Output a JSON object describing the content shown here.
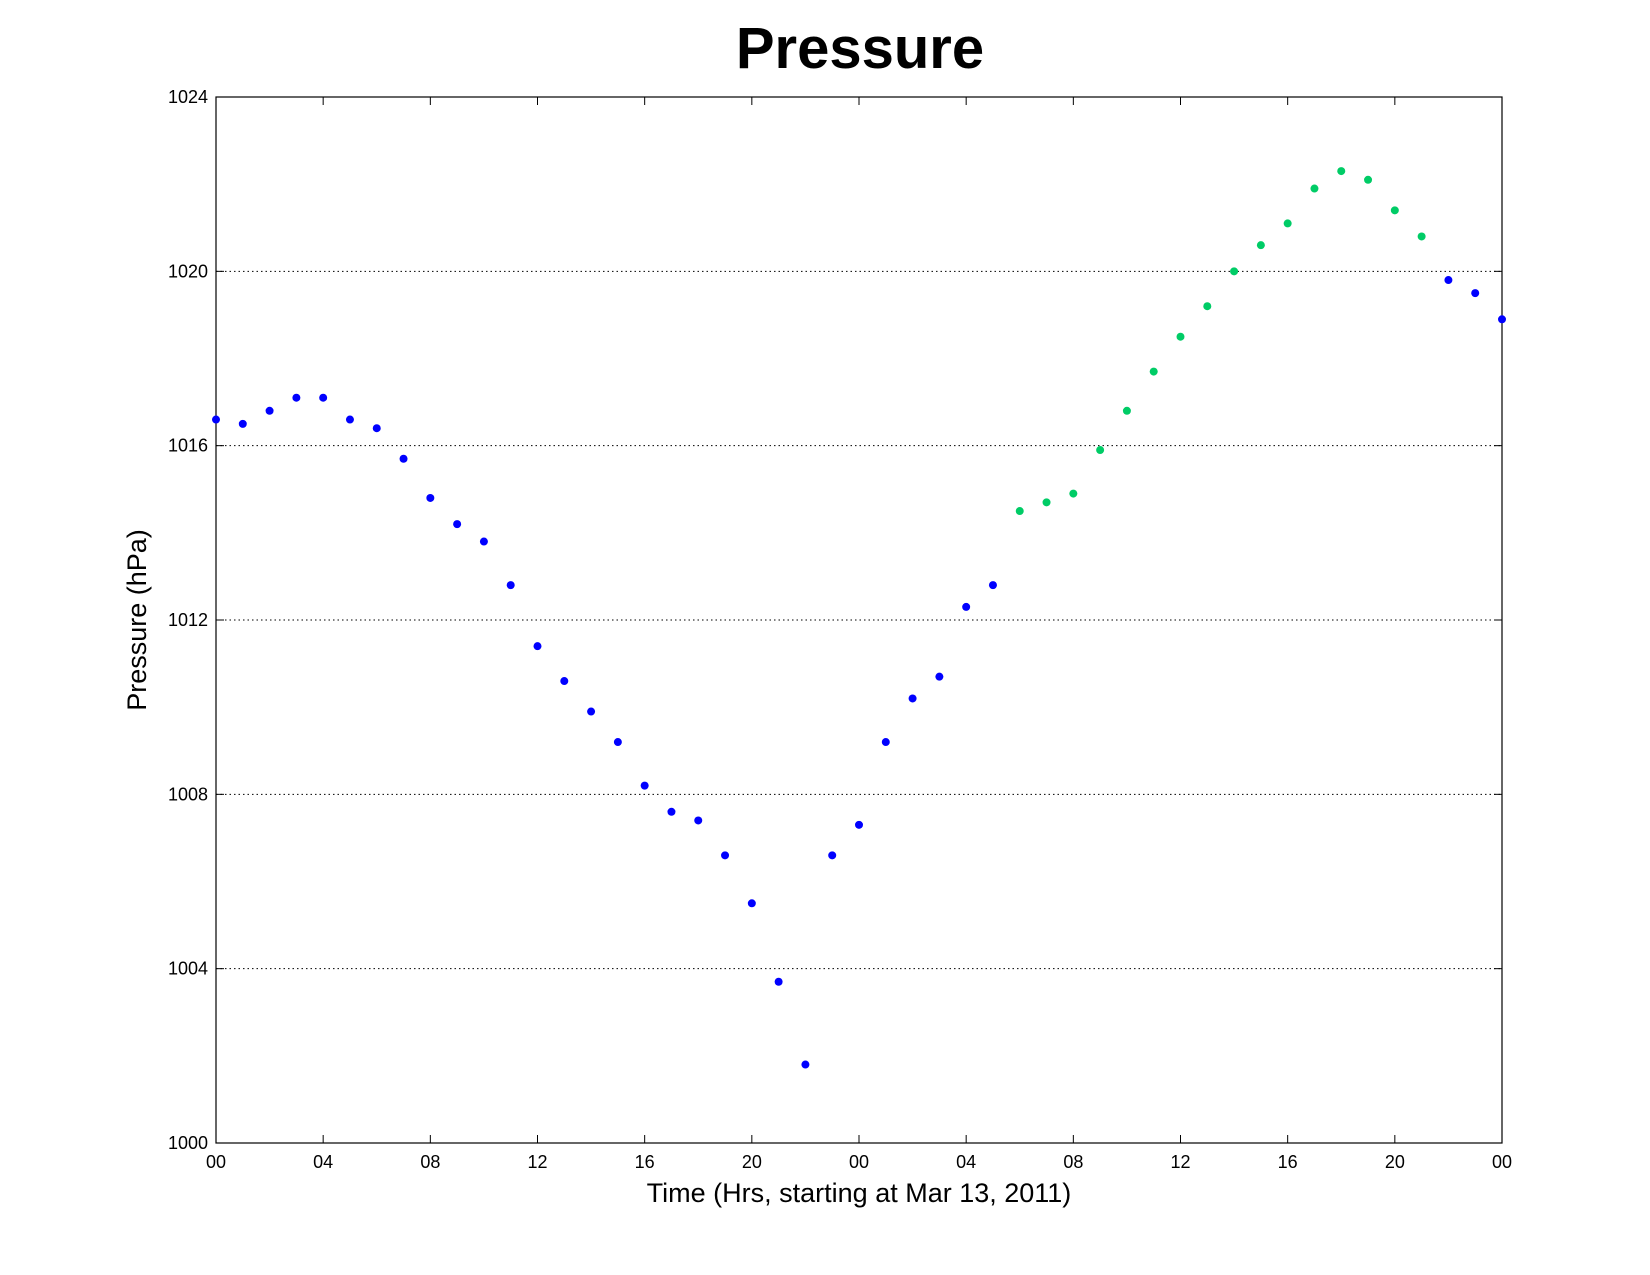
{
  "chart_data": {
    "type": "scatter",
    "title": "Pressure",
    "xlabel": "Time (Hrs, starting at Mar 13, 2011)",
    "ylabel": "Pressure (hPa)",
    "xlim": [
      0,
      48
    ],
    "ylim": [
      1000,
      1024
    ],
    "x_ticks": [
      0,
      4,
      8,
      12,
      16,
      20,
      24,
      28,
      32,
      36,
      40,
      44,
      48
    ],
    "x_tick_labels": [
      "00",
      "04",
      "08",
      "12",
      "16",
      "20",
      "00",
      "04",
      "08",
      "12",
      "16",
      "20",
      "00"
    ],
    "y_ticks": [
      1000,
      1004,
      1008,
      1012,
      1016,
      1020,
      1024
    ],
    "y_tick_labels": [
      "1000",
      "1004",
      "1008",
      "1012",
      "1016",
      "1020",
      "1024"
    ],
    "y_grid": true,
    "y_grid_style": "dotted",
    "legend": false,
    "series": [
      {
        "color": "#0000ff",
        "x": [
          0,
          1,
          2,
          3,
          4,
          5,
          6,
          7,
          8,
          9,
          10,
          11,
          12,
          13,
          14,
          15,
          16,
          17,
          18,
          19,
          20,
          21,
          22,
          23,
          24,
          25,
          26,
          27,
          28,
          29,
          46,
          47,
          48
        ],
        "values": [
          1016.6,
          1016.5,
          1016.8,
          1017.1,
          1017.1,
          1016.6,
          1016.4,
          1015.7,
          1014.8,
          1014.2,
          1013.8,
          1012.8,
          1011.4,
          1010.6,
          1009.9,
          1009.2,
          1008.2,
          1007.6,
          1007.4,
          1006.6,
          1005.5,
          1003.7,
          1001.8,
          1006.6,
          1007.3,
          1009.2,
          1010.2,
          1010.7,
          1012.3,
          1012.8,
          1019.8,
          1019.5,
          1018.9
        ]
      },
      {
        "color": "#00cc66",
        "x": [
          30,
          31,
          32,
          33,
          34,
          35,
          36,
          37,
          38,
          39,
          40,
          41,
          42,
          43,
          44,
          45
        ],
        "values": [
          1014.5,
          1014.7,
          1014.9,
          1015.9,
          1016.8,
          1017.7,
          1018.5,
          1019.2,
          1020.0,
          1020.6,
          1021.1,
          1021.9,
          1022.3,
          1022.1,
          1021.4,
          1020.8
        ]
      }
    ]
  }
}
